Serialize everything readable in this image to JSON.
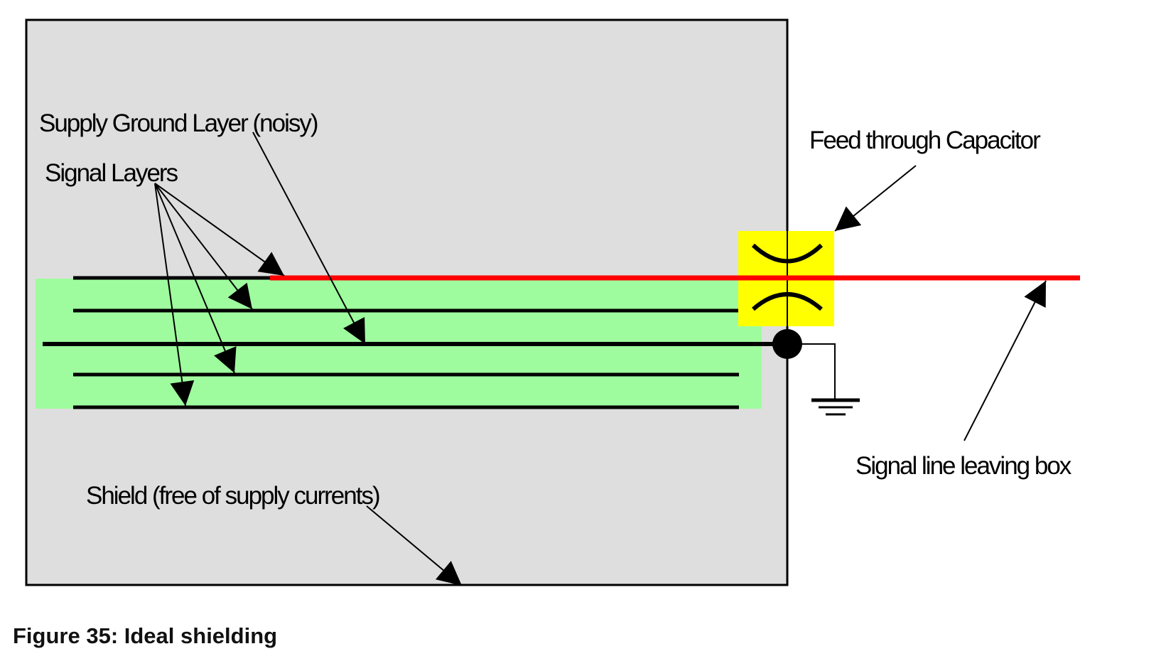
{
  "diagram": {
    "labels": {
      "supply_ground_layer": "Supply Ground Layer (noisy)",
      "signal_layers": "Signal Layers",
      "feed_through_capacitor": "Feed through Capacitor",
      "signal_line_leaving_box": "Signal line leaving box",
      "shield": "Shield (free of supply currents)"
    },
    "colors": {
      "shield_box": "#dedede",
      "pcb_layers": "#9efc9e",
      "signal_line": "#ff0000",
      "capacitor": "#ffff00",
      "lines": "#000000"
    }
  },
  "caption": "Figure 35: Ideal shielding"
}
